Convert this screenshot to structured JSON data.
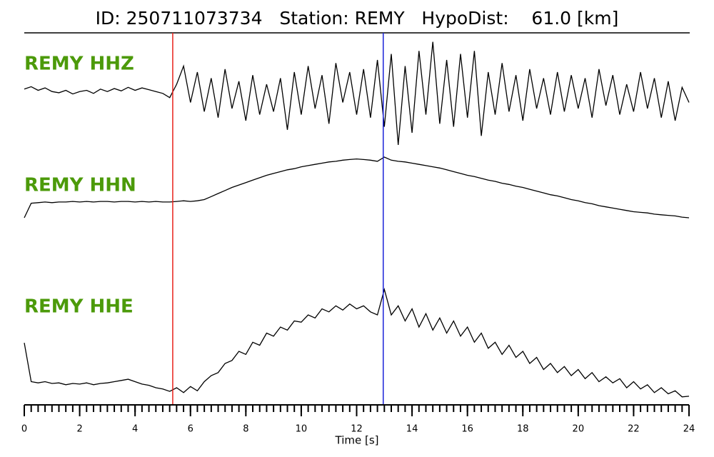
{
  "chart_data": {
    "type": "seismogram",
    "title": "ID: 250711073734   Station: REMY   HypoDist:    61.0 [km]",
    "xlabel": "Time [s]",
    "xlim": [
      0,
      24
    ],
    "xticks": [
      0,
      2,
      4,
      6,
      8,
      10,
      12,
      14,
      16,
      18,
      20,
      22,
      24
    ],
    "xminor": true,
    "ylim": [
      -1,
      1
    ],
    "x": [
      0,
      0.25,
      0.5,
      0.75,
      1,
      1.25,
      1.5,
      1.75,
      2,
      2.25,
      2.5,
      2.75,
      3,
      3.25,
      3.5,
      3.75,
      4,
      4.25,
      4.5,
      4.75,
      5,
      5.25,
      5.5,
      5.75,
      6,
      6.25,
      6.5,
      6.75,
      7,
      7.25,
      7.5,
      7.75,
      8,
      8.25,
      8.5,
      8.75,
      9,
      9.25,
      9.5,
      9.75,
      10,
      10.25,
      10.5,
      10.75,
      11,
      11.25,
      11.5,
      11.75,
      12,
      12.25,
      12.5,
      12.75,
      13,
      13.25,
      13.5,
      13.75,
      14,
      14.25,
      14.5,
      14.75,
      15,
      15.25,
      15.5,
      15.75,
      16,
      16.25,
      16.5,
      16.75,
      17,
      17.25,
      17.5,
      17.75,
      18,
      18.25,
      18.5,
      18.75,
      19,
      19.25,
      19.5,
      19.75,
      20,
      20.25,
      20.5,
      20.75,
      21,
      21.25,
      21.5,
      21.75,
      22,
      22.25,
      22.5,
      22.75,
      23,
      23.25,
      23.5,
      23.75,
      24
    ],
    "vlines": [
      {
        "value": 5.36,
        "color": "#e8221a"
      },
      {
        "value": 12.96,
        "color": "#1a22d8"
      }
    ],
    "series": [
      {
        "name": "REMY HHZ",
        "color": "#000000",
        "label_color": "#4c9a0a",
        "values": [
          0.12,
          0.16,
          0.1,
          0.14,
          0.08,
          0.06,
          0.1,
          0.04,
          0.08,
          0.1,
          0.05,
          0.12,
          0.08,
          0.13,
          0.09,
          0.15,
          0.1,
          0.14,
          0.11,
          0.08,
          0.05,
          -0.02,
          0.2,
          0.5,
          -0.1,
          0.4,
          -0.25,
          0.3,
          -0.35,
          0.45,
          -0.2,
          0.25,
          -0.4,
          0.35,
          -0.3,
          0.2,
          -0.25,
          0.3,
          -0.55,
          0.4,
          -0.3,
          0.5,
          -0.2,
          0.35,
          -0.45,
          0.55,
          -0.1,
          0.4,
          -0.3,
          0.45,
          -0.35,
          0.6,
          -0.5,
          0.7,
          -0.8,
          0.5,
          -0.6,
          0.75,
          -0.3,
          0.9,
          -0.45,
          0.6,
          -0.5,
          0.7,
          -0.35,
          0.75,
          -0.65,
          0.4,
          -0.3,
          0.55,
          -0.25,
          0.35,
          -0.4,
          0.45,
          -0.2,
          0.3,
          -0.3,
          0.4,
          -0.25,
          0.35,
          -0.2,
          0.3,
          -0.35,
          0.45,
          -0.15,
          0.35,
          -0.3,
          0.2,
          -0.25,
          0.4,
          -0.2,
          0.3,
          -0.35,
          0.25,
          -0.4,
          0.15,
          -0.1
        ]
      },
      {
        "name": "REMY HHN",
        "color": "#000000",
        "label_color": "#4c9a0a",
        "values": [
          0.0,
          0.24,
          0.25,
          0.26,
          0.25,
          0.26,
          0.26,
          0.27,
          0.26,
          0.27,
          0.26,
          0.27,
          0.27,
          0.26,
          0.27,
          0.27,
          0.26,
          0.27,
          0.26,
          0.27,
          0.26,
          0.26,
          0.27,
          0.28,
          0.27,
          0.28,
          0.3,
          0.35,
          0.4,
          0.45,
          0.5,
          0.54,
          0.58,
          0.62,
          0.66,
          0.7,
          0.73,
          0.76,
          0.79,
          0.81,
          0.84,
          0.86,
          0.88,
          0.9,
          0.92,
          0.93,
          0.95,
          0.96,
          0.97,
          0.96,
          0.95,
          0.93,
          1.0,
          0.95,
          0.93,
          0.92,
          0.9,
          0.88,
          0.86,
          0.84,
          0.82,
          0.79,
          0.76,
          0.73,
          0.7,
          0.68,
          0.65,
          0.62,
          0.6,
          0.57,
          0.55,
          0.52,
          0.5,
          0.47,
          0.44,
          0.41,
          0.38,
          0.36,
          0.33,
          0.3,
          0.28,
          0.25,
          0.23,
          0.2,
          0.18,
          0.16,
          0.14,
          0.12,
          0.1,
          0.09,
          0.08,
          0.06,
          0.05,
          0.04,
          0.03,
          0.01,
          0.0
        ]
      },
      {
        "name": "REMY HHE",
        "color": "#000000",
        "label_color": "#4c9a0a",
        "values": [
          -0.06,
          -0.7,
          -0.72,
          -0.7,
          -0.73,
          -0.72,
          -0.75,
          -0.73,
          -0.74,
          -0.72,
          -0.75,
          -0.73,
          -0.72,
          -0.7,
          -0.68,
          -0.66,
          -0.7,
          -0.74,
          -0.76,
          -0.8,
          -0.82,
          -0.86,
          -0.8,
          -0.88,
          -0.78,
          -0.85,
          -0.7,
          -0.6,
          -0.55,
          -0.4,
          -0.35,
          -0.2,
          -0.25,
          -0.05,
          -0.1,
          0.1,
          0.05,
          0.2,
          0.15,
          0.3,
          0.28,
          0.4,
          0.35,
          0.5,
          0.45,
          0.55,
          0.48,
          0.58,
          0.5,
          0.55,
          0.45,
          0.4,
          0.82,
          0.4,
          0.55,
          0.3,
          0.5,
          0.2,
          0.42,
          0.15,
          0.35,
          0.1,
          0.3,
          0.05,
          0.2,
          -0.05,
          0.1,
          -0.15,
          -0.05,
          -0.25,
          -0.1,
          -0.3,
          -0.2,
          -0.4,
          -0.3,
          -0.5,
          -0.4,
          -0.55,
          -0.45,
          -0.6,
          -0.5,
          -0.65,
          -0.55,
          -0.7,
          -0.62,
          -0.72,
          -0.65,
          -0.8,
          -0.7,
          -0.82,
          -0.75,
          -0.88,
          -0.8,
          -0.9,
          -0.85,
          -0.95,
          -0.94
        ]
      }
    ]
  }
}
